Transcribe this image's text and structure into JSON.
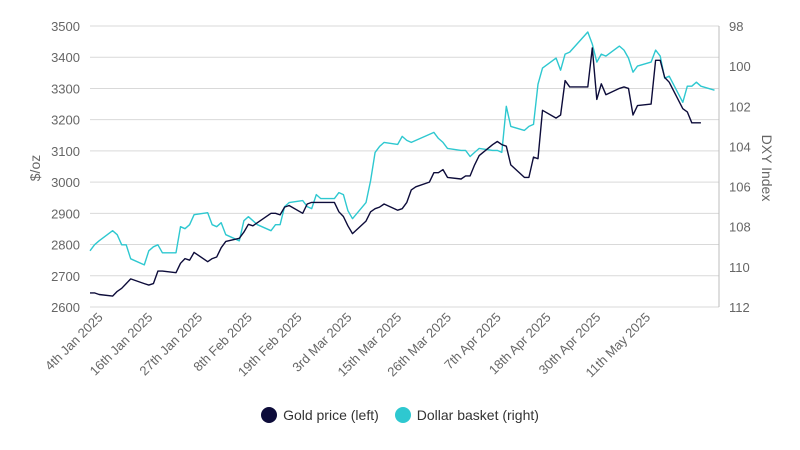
{
  "chart_data": {
    "type": "line",
    "title": "",
    "xlabel": "",
    "ylabel_left": "$/oz",
    "ylabel_right": "DXY Index",
    "grid": true,
    "legend_position": "bottom-center",
    "x_tick_labels": [
      "4th Jan 2025",
      "16th Jan 2025",
      "27th Jan 2025",
      "8th Feb 2025",
      "19th Feb 2025",
      "3rd Mar 2025",
      "15th Mar 2025",
      "26th Mar 2025",
      "7th Apr 2025",
      "18th Apr 2025",
      "30th Apr 2025",
      "11th May 2025"
    ],
    "x_range": [
      "2025-01-01",
      "2025-05-20"
    ],
    "y_left": {
      "min": 2600,
      "max": 3500,
      "ticks": [
        2600,
        2700,
        2800,
        2900,
        3000,
        3100,
        3200,
        3300,
        3400,
        3500
      ]
    },
    "y_right": {
      "min": 98,
      "max": 112,
      "reversed": true,
      "ticks": [
        98,
        100,
        102,
        104,
        106,
        108,
        110,
        112
      ]
    },
    "series": [
      {
        "name": "Gold price (left)",
        "axis": "left",
        "color": "#0d0c3a",
        "points": [
          [
            "2025-01-01",
            2645
          ],
          [
            "2025-01-02",
            2645
          ],
          [
            "2025-01-03",
            2640
          ],
          [
            "2025-01-06",
            2635
          ],
          [
            "2025-01-07",
            2650
          ],
          [
            "2025-01-08",
            2660
          ],
          [
            "2025-01-09",
            2675
          ],
          [
            "2025-01-10",
            2690
          ],
          [
            "2025-01-13",
            2675
          ],
          [
            "2025-01-14",
            2670
          ],
          [
            "2025-01-15",
            2675
          ],
          [
            "2025-01-16",
            2715
          ],
          [
            "2025-01-17",
            2715
          ],
          [
            "2025-01-20",
            2710
          ],
          [
            "2025-01-21",
            2740
          ],
          [
            "2025-01-22",
            2755
          ],
          [
            "2025-01-23",
            2750
          ],
          [
            "2025-01-24",
            2775
          ],
          [
            "2025-01-27",
            2745
          ],
          [
            "2025-01-28",
            2755
          ],
          [
            "2025-01-29",
            2760
          ],
          [
            "2025-01-30",
            2790
          ],
          [
            "2025-01-31",
            2810
          ],
          [
            "2025-02-03",
            2820
          ],
          [
            "2025-02-04",
            2840
          ],
          [
            "2025-02-05",
            2865
          ],
          [
            "2025-02-06",
            2860
          ],
          [
            "2025-02-07",
            2870
          ],
          [
            "2025-02-10",
            2900
          ],
          [
            "2025-02-11",
            2900
          ],
          [
            "2025-02-12",
            2895
          ],
          [
            "2025-02-13",
            2920
          ],
          [
            "2025-02-14",
            2925
          ],
          [
            "2025-02-17",
            2900
          ],
          [
            "2025-02-18",
            2930
          ],
          [
            "2025-02-19",
            2935
          ],
          [
            "2025-02-20",
            2935
          ],
          [
            "2025-02-21",
            2935
          ],
          [
            "2025-02-24",
            2935
          ],
          [
            "2025-02-25",
            2905
          ],
          [
            "2025-02-26",
            2890
          ],
          [
            "2025-02-27",
            2860
          ],
          [
            "2025-02-28",
            2835
          ],
          [
            "2025-03-03",
            2875
          ],
          [
            "2025-03-04",
            2905
          ],
          [
            "2025-03-05",
            2915
          ],
          [
            "2025-03-06",
            2920
          ],
          [
            "2025-03-07",
            2930
          ],
          [
            "2025-03-10",
            2910
          ],
          [
            "2025-03-11",
            2915
          ],
          [
            "2025-03-12",
            2935
          ],
          [
            "2025-03-13",
            2975
          ],
          [
            "2025-03-14",
            2985
          ],
          [
            "2025-03-17",
            3000
          ],
          [
            "2025-03-18",
            3030
          ],
          [
            "2025-03-19",
            3030
          ],
          [
            "2025-03-20",
            3040
          ],
          [
            "2025-03-21",
            3015
          ],
          [
            "2025-03-24",
            3010
          ],
          [
            "2025-03-25",
            3020
          ],
          [
            "2025-03-26",
            3020
          ],
          [
            "2025-03-27",
            3055
          ],
          [
            "2025-03-28",
            3085
          ],
          [
            "2025-03-31",
            3120
          ],
          [
            "2025-04-01",
            3130
          ],
          [
            "2025-04-02",
            3120
          ],
          [
            "2025-04-03",
            3115
          ],
          [
            "2025-04-04",
            3055
          ],
          [
            "2025-04-07",
            3015
          ],
          [
            "2025-04-08",
            3015
          ],
          [
            "2025-04-09",
            3080
          ],
          [
            "2025-04-10",
            3075
          ],
          [
            "2025-04-11",
            3230
          ],
          [
            "2025-04-14",
            3205
          ],
          [
            "2025-04-15",
            3215
          ],
          [
            "2025-04-16",
            3325
          ],
          [
            "2025-04-17",
            3305
          ],
          [
            "2025-04-21",
            3305
          ],
          [
            "2025-04-22",
            3430
          ],
          [
            "2025-04-23",
            3265
          ],
          [
            "2025-04-24",
            3315
          ],
          [
            "2025-04-25",
            3280
          ],
          [
            "2025-04-28",
            3300
          ],
          [
            "2025-04-29",
            3305
          ],
          [
            "2025-04-30",
            3300
          ],
          [
            "2025-05-01",
            3215
          ],
          [
            "2025-05-02",
            3245
          ],
          [
            "2025-05-05",
            3250
          ],
          [
            "2025-05-06",
            3390
          ],
          [
            "2025-05-07",
            3390
          ],
          [
            "2025-05-08",
            3335
          ],
          [
            "2025-05-09",
            3320
          ],
          [
            "2025-05-12",
            3235
          ],
          [
            "2025-05-13",
            3225
          ],
          [
            "2025-05-14",
            3190
          ],
          [
            "2025-05-15",
            3190
          ],
          [
            "2025-05-16",
            3190
          ]
        ]
      },
      {
        "name": "Dollar basket (right)",
        "axis": "right",
        "color": "#2ec8d0",
        "points": [
          [
            "2025-01-01",
            109.2
          ],
          [
            "2025-01-02",
            108.9
          ],
          [
            "2025-01-03",
            108.7
          ],
          [
            "2025-01-06",
            108.2
          ],
          [
            "2025-01-07",
            108.4
          ],
          [
            "2025-01-08",
            108.9
          ],
          [
            "2025-01-09",
            108.9
          ],
          [
            "2025-01-10",
            109.6
          ],
          [
            "2025-01-13",
            109.9
          ],
          [
            "2025-01-14",
            109.2
          ],
          [
            "2025-01-15",
            109.0
          ],
          [
            "2025-01-16",
            108.9
          ],
          [
            "2025-01-17",
            109.3
          ],
          [
            "2025-01-20",
            109.3
          ],
          [
            "2025-01-21",
            108.0
          ],
          [
            "2025-01-22",
            108.1
          ],
          [
            "2025-01-23",
            107.9
          ],
          [
            "2025-01-24",
            107.4
          ],
          [
            "2025-01-27",
            107.3
          ],
          [
            "2025-01-28",
            107.9
          ],
          [
            "2025-01-29",
            108.0
          ],
          [
            "2025-01-30",
            107.8
          ],
          [
            "2025-01-31",
            108.4
          ],
          [
            "2025-02-03",
            108.7
          ],
          [
            "2025-02-04",
            107.7
          ],
          [
            "2025-02-05",
            107.5
          ],
          [
            "2025-02-06",
            107.7
          ],
          [
            "2025-02-07",
            107.9
          ],
          [
            "2025-02-10",
            108.2
          ],
          [
            "2025-02-11",
            107.9
          ],
          [
            "2025-02-12",
            107.9
          ],
          [
            "2025-02-13",
            107.0
          ],
          [
            "2025-02-14",
            106.8
          ],
          [
            "2025-02-17",
            106.7
          ],
          [
            "2025-02-18",
            107.0
          ],
          [
            "2025-02-19",
            107.1
          ],
          [
            "2025-02-20",
            106.4
          ],
          [
            "2025-02-21",
            106.6
          ],
          [
            "2025-02-24",
            106.6
          ],
          [
            "2025-02-25",
            106.3
          ],
          [
            "2025-02-26",
            106.4
          ],
          [
            "2025-02-27",
            107.2
          ],
          [
            "2025-02-28",
            107.6
          ],
          [
            "2025-03-03",
            106.8
          ],
          [
            "2025-03-04",
            105.7
          ],
          [
            "2025-03-05",
            104.3
          ],
          [
            "2025-03-06",
            104.0
          ],
          [
            "2025-03-07",
            103.8
          ],
          [
            "2025-03-10",
            103.9
          ],
          [
            "2025-03-11",
            103.5
          ],
          [
            "2025-03-12",
            103.7
          ],
          [
            "2025-03-13",
            103.8
          ],
          [
            "2025-03-14",
            103.7
          ],
          [
            "2025-03-17",
            103.4
          ],
          [
            "2025-03-18",
            103.3
          ],
          [
            "2025-03-19",
            103.6
          ],
          [
            "2025-03-20",
            103.8
          ],
          [
            "2025-03-21",
            104.1
          ],
          [
            "2025-03-24",
            104.2
          ],
          [
            "2025-03-25",
            104.2
          ],
          [
            "2025-03-26",
            104.5
          ],
          [
            "2025-03-27",
            104.3
          ],
          [
            "2025-03-28",
            104.1
          ],
          [
            "2025-03-31",
            104.2
          ],
          [
            "2025-04-01",
            104.2
          ],
          [
            "2025-04-02",
            104.3
          ],
          [
            "2025-04-03",
            102.0
          ],
          [
            "2025-04-04",
            103.0
          ],
          [
            "2025-04-07",
            103.2
          ],
          [
            "2025-04-08",
            103.0
          ],
          [
            "2025-04-09",
            102.9
          ],
          [
            "2025-04-10",
            100.9
          ],
          [
            "2025-04-11",
            100.1
          ],
          [
            "2025-04-14",
            99.6
          ],
          [
            "2025-04-15",
            100.2
          ],
          [
            "2025-04-16",
            99.4
          ],
          [
            "2025-04-17",
            99.3
          ],
          [
            "2025-04-21",
            98.3
          ],
          [
            "2025-04-22",
            98.9
          ],
          [
            "2025-04-23",
            99.8
          ],
          [
            "2025-04-24",
            99.4
          ],
          [
            "2025-04-25",
            99.5
          ],
          [
            "2025-04-28",
            99.0
          ],
          [
            "2025-04-29",
            99.2
          ],
          [
            "2025-04-30",
            99.6
          ],
          [
            "2025-05-01",
            100.3
          ],
          [
            "2025-05-02",
            100.0
          ],
          [
            "2025-05-05",
            99.8
          ],
          [
            "2025-05-06",
            99.2
          ],
          [
            "2025-05-07",
            99.5
          ],
          [
            "2025-05-08",
            100.6
          ],
          [
            "2025-05-09",
            100.5
          ],
          [
            "2025-05-12",
            101.8
          ],
          [
            "2025-05-13",
            101.0
          ],
          [
            "2025-05-14",
            101.0
          ],
          [
            "2025-05-15",
            100.8
          ],
          [
            "2025-05-16",
            101.0
          ],
          [
            "2025-05-19",
            101.2
          ]
        ]
      }
    ]
  }
}
